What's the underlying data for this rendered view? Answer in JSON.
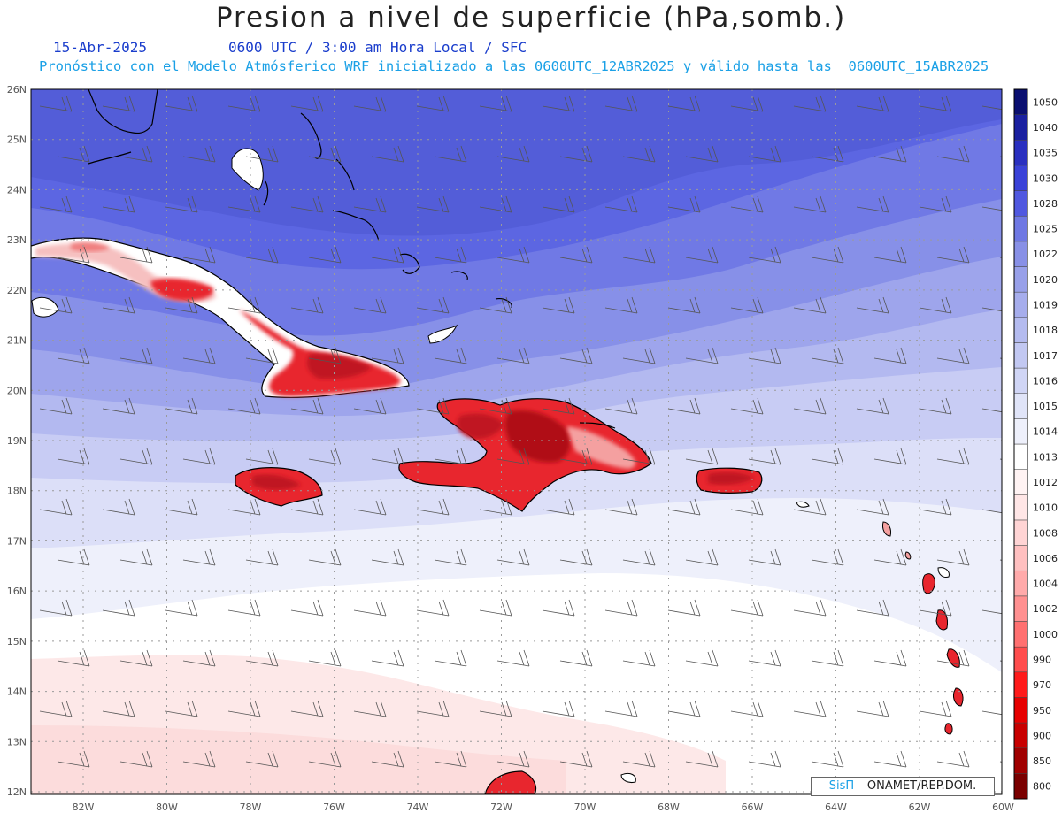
{
  "title": "Presion a nivel de superficie (hPa,somb.)",
  "date": "15-Abr-2025",
  "time_info": "0600 UTC / 3:00 am Hora Local / SFC",
  "forecast_info": "Pronóstico con el Modelo Atmósferico WRF inicializado a las 0600UTC_12ABR2025 y válido hasta las  0600UTC_15ABR2025",
  "credit": {
    "brand": "SisΠ",
    "text": "– ONAMET/REP.DOM."
  },
  "lat_labels": [
    "12N",
    "13N",
    "14N",
    "15N",
    "16N",
    "17N",
    "18N",
    "19N",
    "20N",
    "21N",
    "22N",
    "23N",
    "24N",
    "25N",
    "26N"
  ],
  "lon_labels": [
    "82W",
    "80W",
    "78W",
    "76W",
    "74W",
    "72W",
    "70W",
    "68W",
    "66W",
    "64W",
    "62W",
    "60W"
  ],
  "colorbar": {
    "levels": [
      "800",
      "850",
      "900",
      "950",
      "970",
      "990",
      "1000",
      "1002",
      "1004",
      "1006",
      "1008",
      "1010",
      "1012",
      "1013",
      "1014",
      "1015",
      "1016",
      "1017",
      "1018",
      "1019",
      "1020",
      "1022",
      "1025",
      "1028",
      "1030",
      "1035",
      "1040",
      "1050"
    ],
    "colors": [
      "#7a0000",
      "#a00000",
      "#c80000",
      "#e60000",
      "#ff1a1a",
      "#ff4d4d",
      "#ff7070",
      "#ff9090",
      "#ffaaaa",
      "#ffc0c0",
      "#ffd4d4",
      "#ffe6e6",
      "#fff3f3",
      "#ffffff",
      "#eef0fb",
      "#e0e4f8",
      "#d0d5f5",
      "#c2c8f2",
      "#b4bbef",
      "#a6adec",
      "#98a0e9",
      "#8890e6",
      "#6f78e3",
      "#5058e0",
      "#3a42d8",
      "#2a30c0",
      "#1a20a0",
      "#0a0f70"
    ]
  },
  "colors": {
    "bands": [
      "#5c66e2",
      "#7079e5",
      "#8790e8",
      "#9ea5ec",
      "#b3b9f0",
      "#c8ccf4",
      "#dcdff8",
      "#eef0fb",
      "#ffffff",
      "#fde8e8"
    ],
    "land_red": "#e8262e",
    "land_dark": "#b01018",
    "grid": "#9a9a9a",
    "axis_text": "#555555"
  }
}
